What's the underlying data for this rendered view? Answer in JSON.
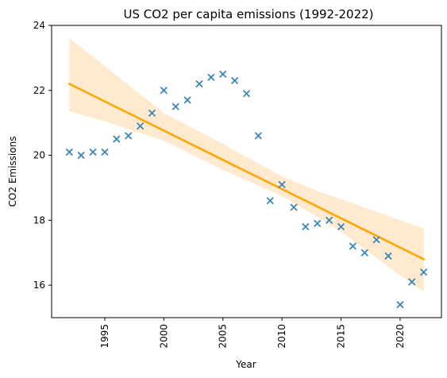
{
  "chart_data": {
    "type": "scatter",
    "title": "US CO2 per capita emissions (1992-2022)",
    "xlabel": "Year",
    "ylabel": "CO2 Emissions",
    "xlim": [
      1990.5,
      2023.5
    ],
    "ylim": [
      15,
      24
    ],
    "x_ticks": [
      1995,
      2000,
      2005,
      2010,
      2015,
      2020
    ],
    "y_ticks": [
      16,
      18,
      20,
      22,
      24
    ],
    "grid": false,
    "legend": "none",
    "series": [
      {
        "marker": "x",
        "color": "#3b86b8",
        "points": [
          {
            "x": 1992,
            "y": 20.1
          },
          {
            "x": 1993,
            "y": 20.0
          },
          {
            "x": 1994,
            "y": 20.1
          },
          {
            "x": 1995,
            "y": 20.1
          },
          {
            "x": 1996,
            "y": 20.5
          },
          {
            "x": 1997,
            "y": 20.6
          },
          {
            "x": 1998,
            "y": 20.9
          },
          {
            "x": 1999,
            "y": 21.3
          },
          {
            "x": 2000,
            "y": 22.0
          },
          {
            "x": 2001,
            "y": 21.5
          },
          {
            "x": 2002,
            "y": 21.7
          },
          {
            "x": 2003,
            "y": 22.2
          },
          {
            "x": 2004,
            "y": 22.4
          },
          {
            "x": 2005,
            "y": 22.5
          },
          {
            "x": 2006,
            "y": 22.3
          },
          {
            "x": 2007,
            "y": 21.9
          },
          {
            "x": 2008,
            "y": 20.6
          },
          {
            "x": 2009,
            "y": 18.6
          },
          {
            "x": 2010,
            "y": 19.1
          },
          {
            "x": 2011,
            "y": 18.4
          },
          {
            "x": 2012,
            "y": 17.8
          },
          {
            "x": 2013,
            "y": 17.9
          },
          {
            "x": 2014,
            "y": 18.0
          },
          {
            "x": 2015,
            "y": 17.8
          },
          {
            "x": 2016,
            "y": 17.2
          },
          {
            "x": 2017,
            "y": 17.0
          },
          {
            "x": 2018,
            "y": 17.4
          },
          {
            "x": 2019,
            "y": 16.9
          },
          {
            "x": 2020,
            "y": 15.4
          },
          {
            "x": 2021,
            "y": 16.1
          },
          {
            "x": 2022,
            "y": 16.4
          }
        ]
      }
    ],
    "regression": {
      "color": "#ffa500",
      "band_color": "#ffe6c7",
      "line": [
        {
          "x": 1992,
          "y": 22.2
        },
        {
          "x": 2022,
          "y": 16.8
        }
      ],
      "band": [
        {
          "x": 1992,
          "lo": 21.35,
          "hi": 23.6
        },
        {
          "x": 1995,
          "lo": 21.05,
          "hi": 22.75
        },
        {
          "x": 2000,
          "lo": 20.45,
          "hi": 21.3
        },
        {
          "x": 2005,
          "lo": 19.55,
          "hi": 20.35
        },
        {
          "x": 2010,
          "lo": 18.75,
          "hi": 19.35
        },
        {
          "x": 2013,
          "lo": 18.1,
          "hi": 18.9
        },
        {
          "x": 2015,
          "lo": 17.65,
          "hi": 18.65
        },
        {
          "x": 2020,
          "lo": 16.3,
          "hi": 18.0
        },
        {
          "x": 2022,
          "lo": 15.8,
          "hi": 17.75
        }
      ]
    }
  }
}
